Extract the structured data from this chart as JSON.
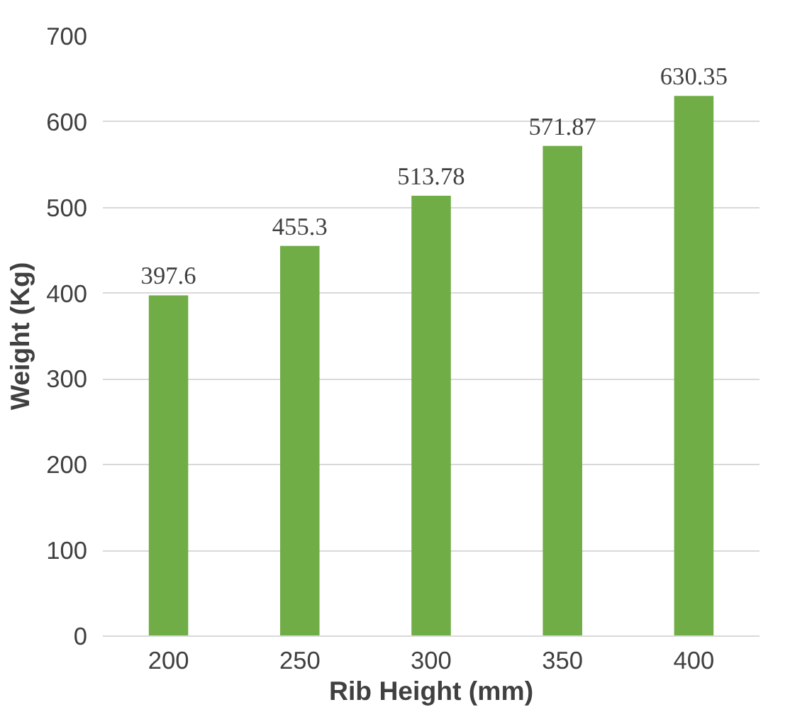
{
  "chart_data": {
    "type": "bar",
    "xlabel": "Rib Height (mm)",
    "ylabel": "Weight (Kg)",
    "categories": [
      "200",
      "250",
      "300",
      "350",
      "400"
    ],
    "values": [
      397.6,
      455.3,
      513.78,
      571.87,
      630.35
    ],
    "color": "#70ad47",
    "ylim": [
      0,
      700
    ],
    "yticks": [
      0,
      100,
      200,
      300,
      400,
      500,
      600,
      700
    ],
    "grid": "y",
    "data_labels": true
  }
}
